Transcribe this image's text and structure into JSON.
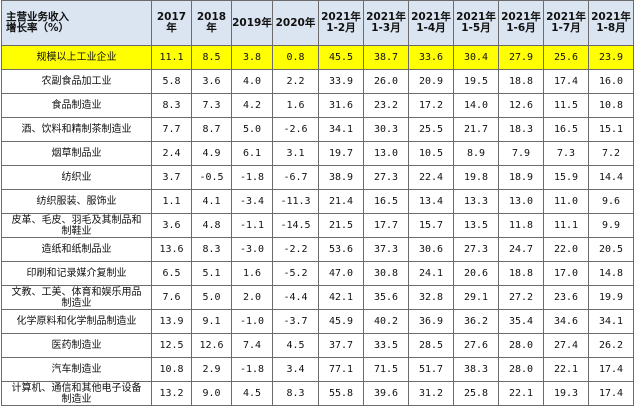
{
  "table": {
    "header": {
      "corner_line1": "主营业务收入",
      "corner_line2": "增长率（%）",
      "columns": [
        {
          "line1": "2017年",
          "line2": ""
        },
        {
          "line1": "2018年",
          "line2": ""
        },
        {
          "line1": "2019年",
          "line2": ""
        },
        {
          "line1": "2020年",
          "line2": ""
        },
        {
          "line1": "2021年",
          "line2": "1-2月"
        },
        {
          "line1": "2021年",
          "line2": "1-3月"
        },
        {
          "line1": "2021年",
          "line2": "1-4月"
        },
        {
          "line1": "2021年",
          "line2": "1-5月"
        },
        {
          "line1": "2021年",
          "line2": "1-6月"
        },
        {
          "line1": "2021年",
          "line2": "1-7月"
        },
        {
          "line1": "2021年",
          "line2": "1-8月"
        }
      ]
    },
    "rows": [
      {
        "name_line1": "规模以上工业企业",
        "name_line2": "",
        "values": [
          "11.1",
          "8.5",
          "3.8",
          "0.8",
          "45.5",
          "38.7",
          "33.6",
          "30.4",
          "27.9",
          "25.6",
          "23.9"
        ]
      },
      {
        "name_line1": "农副食品加工业",
        "name_line2": "",
        "values": [
          "5.8",
          "3.6",
          "4.0",
          "2.2",
          "33.9",
          "26.0",
          "20.9",
          "19.5",
          "18.8",
          "17.4",
          "16.0"
        ]
      },
      {
        "name_line1": "食品制造业",
        "name_line2": "",
        "values": [
          "8.3",
          "7.3",
          "4.2",
          "1.6",
          "31.6",
          "23.2",
          "17.2",
          "14.0",
          "12.6",
          "11.5",
          "10.8"
        ]
      },
      {
        "name_line1": "酒、饮料和精制茶制造业",
        "name_line2": "",
        "values": [
          "7.7",
          "8.7",
          "5.0",
          "-2.6",
          "34.1",
          "30.3",
          "25.5",
          "21.7",
          "18.3",
          "16.5",
          "15.1"
        ]
      },
      {
        "name_line1": "烟草制品业",
        "name_line2": "",
        "values": [
          "2.4",
          "4.9",
          "6.1",
          "3.1",
          "19.7",
          "13.0",
          "10.5",
          "8.9",
          "7.9",
          "7.3",
          "7.2"
        ]
      },
      {
        "name_line1": "纺织业",
        "name_line2": "",
        "values": [
          "3.7",
          "-0.5",
          "-1.8",
          "-6.7",
          "38.9",
          "27.3",
          "22.4",
          "19.8",
          "18.9",
          "15.9",
          "14.4"
        ]
      },
      {
        "name_line1": "纺织服装、服饰业",
        "name_line2": "",
        "values": [
          "1.1",
          "4.1",
          "-3.4",
          "-11.3",
          "21.4",
          "16.5",
          "13.4",
          "13.3",
          "13.0",
          "11.0",
          "9.6"
        ]
      },
      {
        "name_line1": "皮革、毛皮、羽毛及其制品和",
        "name_line2": "制鞋业",
        "values": [
          "3.6",
          "4.8",
          "-1.1",
          "-14.5",
          "21.5",
          "17.7",
          "15.7",
          "13.5",
          "11.8",
          "11.1",
          "9.9"
        ]
      },
      {
        "name_line1": "造纸和纸制品业",
        "name_line2": "",
        "values": [
          "13.6",
          "8.3",
          "-3.0",
          "-2.2",
          "53.6",
          "37.3",
          "30.6",
          "27.3",
          "24.7",
          "22.0",
          "20.5"
        ]
      },
      {
        "name_line1": "印刷和记录媒介复制业",
        "name_line2": "",
        "values": [
          "6.5",
          "5.1",
          "1.6",
          "-5.2",
          "47.0",
          "30.8",
          "24.1",
          "20.6",
          "18.8",
          "17.0",
          "14.8"
        ]
      },
      {
        "name_line1": "文教、工美、体育和娱乐用品",
        "name_line2": "制造业",
        "values": [
          "7.6",
          "5.0",
          "2.0",
          "-4.4",
          "42.1",
          "35.6",
          "32.8",
          "29.1",
          "27.2",
          "23.6",
          "19.9"
        ]
      },
      {
        "name_line1": "化学原料和化学制品制造业",
        "name_line2": "",
        "values": [
          "13.9",
          "9.1",
          "-1.0",
          "-3.7",
          "45.9",
          "40.2",
          "36.9",
          "36.2",
          "35.4",
          "34.6",
          "34.1"
        ]
      },
      {
        "name_line1": "医药制造业",
        "name_line2": "",
        "values": [
          "12.5",
          "12.6",
          "7.4",
          "4.5",
          "37.7",
          "33.5",
          "28.5",
          "27.6",
          "28.0",
          "27.4",
          "26.2"
        ]
      },
      {
        "name_line1": "汽车制造业",
        "name_line2": "",
        "values": [
          "10.8",
          "2.9",
          "-1.8",
          "3.4",
          "77.1",
          "71.5",
          "51.7",
          "38.3",
          "28.0",
          "22.1",
          "17.4"
        ]
      },
      {
        "name_line1": "计算机、通信和其他电子设备",
        "name_line2": "制造业",
        "values": [
          "13.2",
          "9.0",
          "4.5",
          "8.3",
          "55.8",
          "39.6",
          "31.2",
          "25.8",
          "22.1",
          "19.3",
          "17.4"
        ]
      }
    ]
  }
}
